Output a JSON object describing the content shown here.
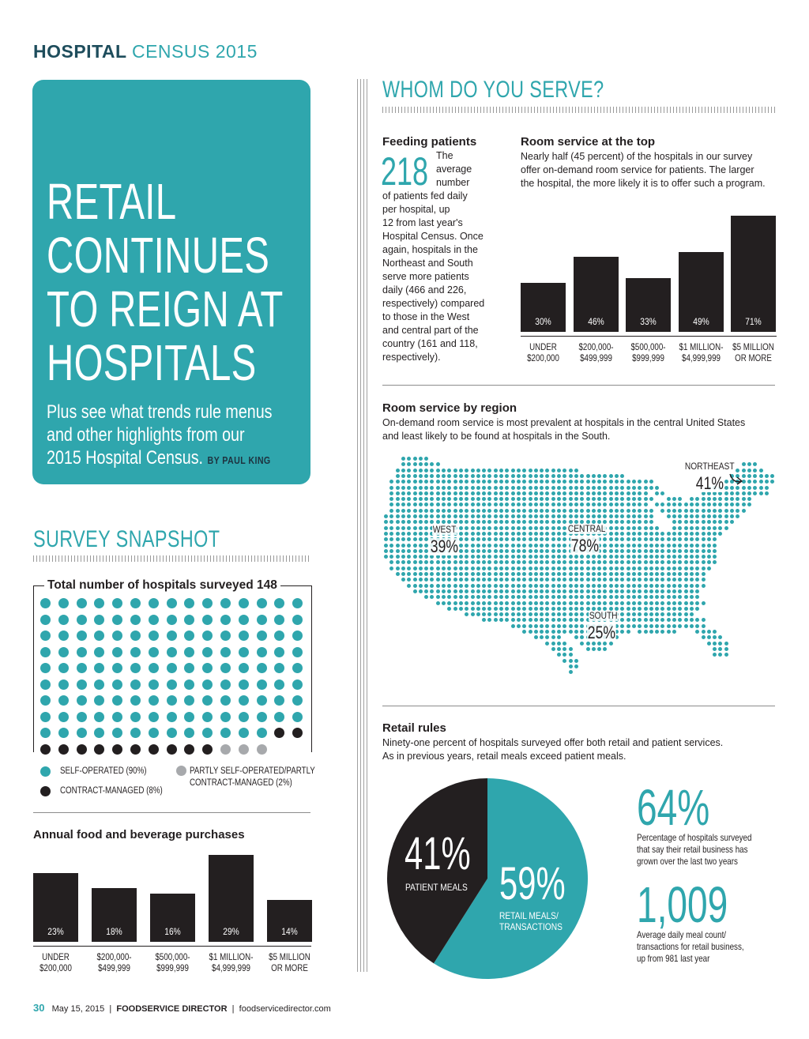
{
  "header": {
    "bold": "HOSPITAL",
    "light": "CENSUS 2015"
  },
  "hero": {
    "title_lines": [
      "RETAIL",
      "CONTINUES",
      "TO REIGN AT",
      "HOSPITALS"
    ],
    "subtitle_lines": [
      "Plus see what trends rule menus",
      "and other highlights from our",
      "2015 Hospital Census."
    ],
    "byline": "BY PAUL KING"
  },
  "snapshot": {
    "title": "SURVEY SNAPSHOT",
    "box_title": "Total number of hospitals surveyed 148",
    "counts": {
      "self_operated": 133,
      "contract_managed": 12,
      "partly": 3
    },
    "colors": {
      "self_operated": "#2fa6ad",
      "contract_managed": "#231f20",
      "partly": "#a7a9ac"
    },
    "legend": {
      "self_operated": "SELF-OPERATED (90%)",
      "contract_managed": "CONTRACT-MANAGED (8%)",
      "partly_line1": "PARTLY SELF-OPERATED/PARTLY",
      "partly_line2": "CONTRACT-MANAGED (2%)"
    }
  },
  "annual": {
    "title": "Annual food and beverage purchases",
    "chart_data": {
      "type": "bar",
      "categories": [
        "UNDER $200,000",
        "$200,000-$499,999",
        "$500,000-$999,999",
        "$1 MILLION-$4,999,999",
        "$5 MILLION OR MORE"
      ],
      "values": [
        23,
        18,
        16,
        29,
        14
      ],
      "value_labels": [
        "23%",
        "18%",
        "16%",
        "29%",
        "14%"
      ],
      "cat_line1": [
        "UNDER",
        "$200,000-",
        "$500,000-",
        "$1 MILLION-",
        "$5 MILLION"
      ],
      "cat_line2": [
        "$200,000",
        "$499,999",
        "$999,999",
        "$4,999,999",
        "OR MORE"
      ]
    }
  },
  "serve": {
    "title": "WHOM DO YOU SERVE?",
    "feeding": {
      "heading": "Feeding patients",
      "number": "218",
      "side_lines": [
        "The",
        "average",
        "number"
      ],
      "body_lines": [
        "of patients fed daily",
        "per hospital, up",
        "12 from last year's",
        "Hospital Census. Once",
        "again, hospitals in the",
        "Northeast and South",
        "serve more patients",
        "daily (466 and 226,",
        "respectively) compared",
        "to those in the West",
        "and central part of the",
        "country (161 and 118,",
        "respectively)."
      ]
    },
    "room_service": {
      "heading": "Room service at the top",
      "body_lines": [
        "Nearly half (45 percent) of the hospitals in our survey",
        "offer on-demand room service for patients. The larger",
        "the hospital, the more likely it is to offer such a program."
      ],
      "chart_data": {
        "type": "bar",
        "categories": [
          "UNDER $200,000",
          "$200,000-$499,999",
          "$500,000-$999,999",
          "$1 MILLION-$4,999,999",
          "$5 MILLION OR MORE"
        ],
        "values": [
          30,
          46,
          33,
          49,
          71
        ],
        "value_labels": [
          "30%",
          "46%",
          "33%",
          "49%",
          "71%"
        ],
        "cat_line1": [
          "UNDER",
          "$200,000-",
          "$500,000-",
          "$1 MILLION-",
          "$5 MILLION"
        ],
        "cat_line2": [
          "$200,000",
          "$499,999",
          "$999,999",
          "$4,999,999",
          "OR MORE"
        ]
      }
    },
    "region": {
      "heading": "Room service by region",
      "body_lines": [
        "On-demand room service is most prevalent at hospitals in the central United States",
        "and least likely to be found at hospitals in the South."
      ],
      "map_color": "#2fa6ad",
      "regions": [
        {
          "name": "NORTHEAST",
          "pct": "41%"
        },
        {
          "name": "WEST",
          "pct": "39%"
        },
        {
          "name": "CENTRAL",
          "pct": "78%"
        },
        {
          "name": "SOUTH",
          "pct": "25%"
        }
      ]
    },
    "retail": {
      "heading": "Retail rules",
      "body_lines": [
        "Ninety-one percent of hospitals surveyed offer both retail and patient services.",
        "As in previous years, retail meals exceed patient meals."
      ],
      "chart_data": {
        "type": "pie",
        "categories": [
          "PATIENT MEALS",
          "RETAIL MEALS/TRANSACTIONS"
        ],
        "values": [
          41,
          59
        ],
        "value_labels": [
          "41%",
          "59%"
        ],
        "label_lines": [
          [
            "PATIENT MEALS"
          ],
          [
            "RETAIL MEALS/",
            "TRANSACTIONS"
          ]
        ],
        "colors": [
          "#231f20",
          "#2fa6ad"
        ]
      },
      "stat1": {
        "value": "64%",
        "lines": [
          "Percentage of hospitals surveyed",
          "that say their retail business has",
          "grown over the last two years"
        ]
      },
      "stat2": {
        "value": "1,009",
        "lines": [
          "Average daily meal count/",
          "transactions for retail business,",
          "up from 981 last year"
        ]
      }
    }
  },
  "footer": {
    "page": "30",
    "date": "May 15, 2015",
    "publication": "FOODSERVICE DIRECTOR",
    "site": "foodservicedirector.com"
  }
}
